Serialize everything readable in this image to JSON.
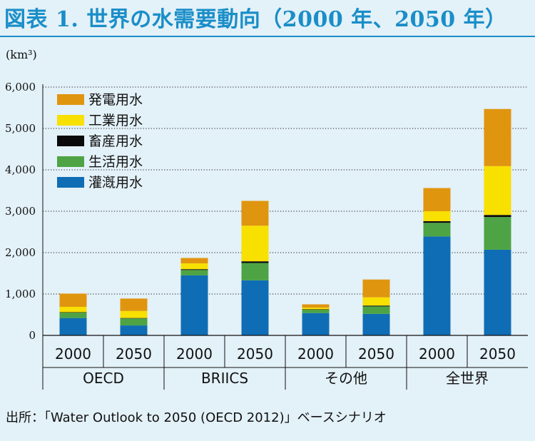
{
  "title": "図表 1. 世界の水需要動向（2000 年、2050 年）",
  "source": "出所：「Water Outlook to 2050 (OECD 2012)」ベースシナリオ",
  "chart_data": {
    "type": "bar",
    "stacked": true,
    "unit_label": "(km³)",
    "ylim": [
      0,
      6000
    ],
    "yticks": [
      "0",
      "1,000",
      "2,000",
      "3,000",
      "4,000",
      "5,000",
      "6,000"
    ],
    "grid": true,
    "legend_position": "top-left",
    "categories": [
      "2000",
      "2050",
      "2000",
      "2050",
      "2000",
      "2050",
      "2000",
      "2050"
    ],
    "groups": [
      "OECD",
      "BRIICS",
      "その他",
      "全世界"
    ],
    "series": [
      {
        "name": "灌漑用水",
        "color": "#0f6db5",
        "values": [
          420,
          240,
          1450,
          1330,
          540,
          520,
          2390,
          2070
        ]
      },
      {
        "name": "生活用水",
        "color": "#4ea444",
        "values": [
          130,
          170,
          130,
          420,
          80,
          180,
          330,
          790
        ]
      },
      {
        "name": "畜産用水",
        "color": "#0a0a0a",
        "values": [
          10,
          10,
          20,
          40,
          10,
          20,
          40,
          50
        ]
      },
      {
        "name": "工業用水",
        "color": "#f8e000",
        "values": [
          130,
          170,
          140,
          860,
          40,
          200,
          240,
          1180
        ]
      },
      {
        "name": "発電用水",
        "color": "#e0950f",
        "values": [
          320,
          300,
          130,
          600,
          80,
          430,
          560,
          1380
        ]
      }
    ]
  }
}
